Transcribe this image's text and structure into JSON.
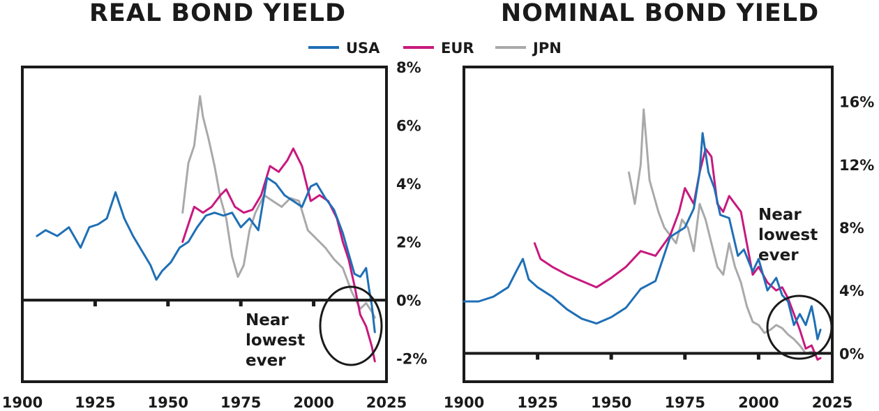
{
  "colors": {
    "USA": "#1f6fb5",
    "EUR": "#c8187e",
    "JPN": "#a9a9ab"
  },
  "legend": [
    {
      "name": "USA",
      "color": "#1f6fb5"
    },
    {
      "name": "EUR",
      "color": "#c8187e"
    },
    {
      "name": "JPN",
      "color": "#a9a9ab"
    }
  ],
  "chart_data": [
    {
      "type": "line",
      "title": "REAL BOND YIELD",
      "xlim": [
        1900,
        2025
      ],
      "ylim": [
        -2.8,
        8
      ],
      "x_ticks": [
        1900,
        1925,
        1950,
        1975,
        2000,
        2025
      ],
      "y_ticks": [
        8,
        6,
        4,
        2,
        0,
        -2
      ],
      "y_tick_labels": [
        "8%",
        "6%",
        "4%",
        "2%",
        "0%",
        "-2%"
      ],
      "annotation": [
        "Near",
        "lowest",
        "ever"
      ],
      "series": [
        {
          "name": "USA",
          "x": [
            1905,
            1908,
            1912,
            1916,
            1920,
            1923,
            1926,
            1929,
            1932,
            1935,
            1938,
            1941,
            1944,
            1946,
            1948,
            1951,
            1954,
            1957,
            1960,
            1963,
            1966,
            1969,
            1972,
            1975,
            1978,
            1981,
            1984,
            1987,
            1990,
            1993,
            1996,
            1999,
            2001,
            2004,
            2007,
            2010,
            2012,
            2014,
            2016,
            2018,
            2019,
            2020,
            2021
          ],
          "y": [
            2.2,
            2.4,
            2.2,
            2.5,
            1.8,
            2.5,
            2.6,
            2.8,
            3.7,
            2.8,
            2.2,
            1.7,
            1.2,
            0.7,
            1.0,
            1.3,
            1.8,
            2.0,
            2.5,
            2.9,
            3.0,
            2.9,
            3.0,
            2.5,
            2.8,
            2.4,
            4.2,
            4.0,
            3.6,
            3.4,
            3.2,
            3.9,
            4.0,
            3.5,
            3.1,
            2.3,
            1.6,
            0.9,
            0.8,
            1.1,
            0.4,
            -0.2,
            -1.1
          ]
        },
        {
          "name": "EUR",
          "x": [
            1955,
            1957,
            1959,
            1962,
            1965,
            1968,
            1970,
            1973,
            1976,
            1979,
            1982,
            1985,
            1988,
            1991,
            1993,
            1996,
            1999,
            2002,
            2005,
            2008,
            2010,
            2012,
            2014,
            2016,
            2018,
            2020,
            2021
          ],
          "y": [
            2.0,
            2.6,
            3.2,
            3.0,
            3.2,
            3.6,
            3.8,
            3.2,
            3.0,
            3.1,
            3.6,
            4.6,
            4.4,
            4.8,
            5.2,
            4.6,
            3.4,
            3.6,
            3.4,
            2.8,
            2.0,
            1.4,
            0.5,
            -0.5,
            -0.9,
            -1.6,
            -2.1
          ]
        },
        {
          "name": "JPN",
          "x": [
            1955,
            1957,
            1959,
            1961,
            1962,
            1964,
            1966,
            1968,
            1970,
            1972,
            1974,
            1976,
            1978,
            1980,
            1983,
            1986,
            1989,
            1992,
            1995,
            1998,
            2001,
            2004,
            2007,
            2010,
            2013,
            2016,
            2018,
            2020,
            2021
          ],
          "y": [
            3.0,
            4.7,
            5.3,
            7.0,
            6.3,
            5.5,
            4.6,
            3.5,
            2.8,
            1.5,
            0.8,
            1.2,
            2.4,
            3.0,
            3.6,
            3.4,
            3.2,
            3.5,
            3.4,
            2.4,
            2.1,
            1.8,
            1.4,
            1.1,
            0.3,
            -0.3,
            -0.1,
            -0.4,
            -0.6
          ]
        }
      ]
    },
    {
      "type": "line",
      "title": "NOMINAL BOND YIELD",
      "xlim": [
        1900,
        2025
      ],
      "ylim": [
        -1.8,
        18.2
      ],
      "x_ticks": [
        1900,
        1925,
        1950,
        1975,
        2000,
        2025
      ],
      "y_ticks": [
        16,
        12,
        8,
        4,
        0
      ],
      "y_tick_labels": [
        "16%",
        "12%",
        "8%",
        "4%",
        "0%"
      ],
      "annotation": [
        "Near",
        "lowest",
        "ever"
      ],
      "series": [
        {
          "name": "USA",
          "x": [
            1900,
            1905,
            1910,
            1915,
            1918,
            1920,
            1922,
            1925,
            1930,
            1935,
            1940,
            1945,
            1950,
            1955,
            1960,
            1965,
            1970,
            1975,
            1978,
            1980,
            1981,
            1983,
            1985,
            1987,
            1990,
            1993,
            1995,
            1998,
            2000,
            2003,
            2006,
            2008,
            2010,
            2012,
            2014,
            2016,
            2018,
            2019,
            2020,
            2021
          ],
          "y": [
            3.3,
            3.3,
            3.6,
            4.2,
            5.3,
            6.0,
            4.7,
            4.2,
            3.6,
            2.8,
            2.2,
            1.9,
            2.3,
            2.9,
            4.1,
            4.6,
            7.4,
            8.0,
            9.2,
            11.5,
            14.0,
            11.5,
            10.5,
            8.8,
            8.6,
            6.2,
            6.6,
            5.2,
            6.0,
            4.0,
            4.8,
            3.7,
            3.3,
            1.8,
            2.5,
            1.8,
            3.0,
            2.0,
            0.9,
            1.5
          ]
        },
        {
          "name": "EUR",
          "x": [
            1924,
            1926,
            1930,
            1935,
            1940,
            1945,
            1950,
            1955,
            1960,
            1965,
            1970,
            1973,
            1975,
            1978,
            1980,
            1982,
            1984,
            1986,
            1988,
            1990,
            1992,
            1994,
            1996,
            1998,
            2000,
            2003,
            2006,
            2008,
            2010,
            2012,
            2014,
            2016,
            2018,
            2020,
            2021
          ],
          "y": [
            7.0,
            6.0,
            5.5,
            5.0,
            4.6,
            4.2,
            4.8,
            5.5,
            6.5,
            6.2,
            7.5,
            9.0,
            10.5,
            9.5,
            11.5,
            13.0,
            12.5,
            9.5,
            9.0,
            10.0,
            9.5,
            9.0,
            7.0,
            5.0,
            5.5,
            4.5,
            4.0,
            4.2,
            3.5,
            2.5,
            1.5,
            0.3,
            0.5,
            -0.4,
            -0.3
          ]
        },
        {
          "name": "JPN",
          "x": [
            1956,
            1958,
            1960,
            1961,
            1963,
            1966,
            1968,
            1970,
            1972,
            1974,
            1976,
            1978,
            1980,
            1982,
            1984,
            1986,
            1988,
            1990,
            1992,
            1994,
            1996,
            1998,
            2000,
            2002,
            2004,
            2006,
            2008,
            2010,
            2012,
            2014,
            2016,
            2018,
            2020,
            2021
          ],
          "y": [
            11.5,
            9.5,
            12.0,
            15.5,
            11.0,
            9.0,
            8.0,
            7.5,
            7.0,
            8.5,
            8.0,
            6.5,
            9.5,
            8.5,
            7.0,
            5.5,
            5.0,
            7.0,
            5.5,
            4.5,
            3.0,
            2.0,
            1.8,
            1.3,
            1.5,
            1.8,
            1.6,
            1.2,
            0.9,
            0.5,
            0.0,
            0.1,
            0.0,
            0.1
          ]
        }
      ]
    }
  ]
}
